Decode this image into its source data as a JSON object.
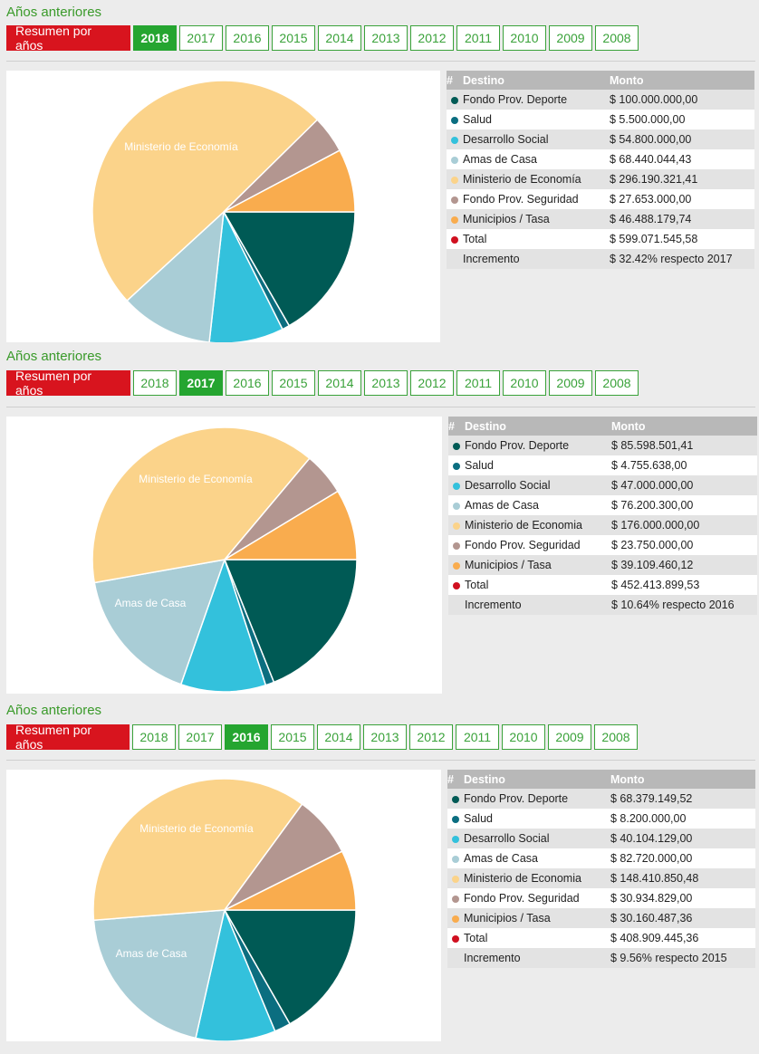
{
  "nav": {
    "section_title": "Años anteriores",
    "summary_label": "Resumen por años",
    "years": [
      "2018",
      "2017",
      "2016",
      "2015",
      "2014",
      "2013",
      "2012",
      "2011",
      "2010",
      "2009",
      "2008"
    ]
  },
  "table_headers": {
    "hash": "#",
    "destino": "Destino",
    "monto": "Monto"
  },
  "sections": [
    {
      "active_year": "2018",
      "rows": [
        {
          "name": "Fondo Prov. Deporte",
          "amount": "$ 100.000.000,00",
          "color": "#005a55"
        },
        {
          "name": "Salud",
          "amount": "$ 5.500.000,00",
          "color": "#0b6e80"
        },
        {
          "name": "Desarrollo Social",
          "amount": "$ 54.800.000,00",
          "color": "#33c1dc"
        },
        {
          "name": "Amas de Casa",
          "amount": "$ 68.440.044,43",
          "color": "#a9cdd6"
        },
        {
          "name": "Ministerio de Economía",
          "amount": "$ 296.190.321,41",
          "color": "#fbd38a"
        },
        {
          "name": "Fondo Prov. Seguridad",
          "amount": "$ 27.653.000,00",
          "color": "#b39690"
        },
        {
          "name": "Municipios / Tasa",
          "amount": "$ 46.488.179,74",
          "color": "#f9ac4e"
        },
        {
          "name": "Total",
          "amount": "$ 599.071.545,58",
          "color": "#d01020"
        },
        {
          "name": "Incremento",
          "amount": "$ 32.42% respecto 2017",
          "color": ""
        }
      ]
    },
    {
      "active_year": "2017",
      "rows": [
        {
          "name": "Fondo Prov. Deporte",
          "amount": "$ 85.598.501,41",
          "color": "#005a55"
        },
        {
          "name": "Salud",
          "amount": "$ 4.755.638,00",
          "color": "#0b6e80"
        },
        {
          "name": "Desarrollo Social",
          "amount": "$ 47.000.000,00",
          "color": "#33c1dc"
        },
        {
          "name": "Amas de Casa",
          "amount": "$ 76.200.300,00",
          "color": "#a9cdd6"
        },
        {
          "name": "Ministerio de Economia",
          "amount": "$ 176.000.000,00",
          "color": "#fbd38a"
        },
        {
          "name": "Fondo Prov. Seguridad",
          "amount": "$ 23.750.000,00",
          "color": "#b39690"
        },
        {
          "name": "Municipios / Tasa",
          "amount": "$ 39.109.460,12",
          "color": "#f9ac4e"
        },
        {
          "name": "Total",
          "amount": "$ 452.413.899,53",
          "color": "#d01020"
        },
        {
          "name": "Incremento",
          "amount": "$ 10.64% respecto 2016",
          "color": ""
        }
      ]
    },
    {
      "active_year": "2016",
      "rows": [
        {
          "name": "Fondo Prov. Deporte",
          "amount": "$ 68.379.149,52",
          "color": "#005a55"
        },
        {
          "name": "Salud",
          "amount": "$ 8.200.000,00",
          "color": "#0b6e80"
        },
        {
          "name": "Desarrollo Social",
          "amount": "$ 40.104.129,00",
          "color": "#33c1dc"
        },
        {
          "name": "Amas de Casa",
          "amount": "$ 82.720.000,00",
          "color": "#a9cdd6"
        },
        {
          "name": "Ministerio de Economia",
          "amount": "$ 148.410.850,48",
          "color": "#fbd38a"
        },
        {
          "name": "Fondo Prov. Seguridad",
          "amount": "$ 30.934.829,00",
          "color": "#b39690"
        },
        {
          "name": "Municipios / Tasa",
          "amount": "$ 30.160.487,36",
          "color": "#f9ac4e"
        },
        {
          "name": "Total",
          "amount": "$ 408.909.445,36",
          "color": "#d01020"
        },
        {
          "name": "Incremento",
          "amount": "$ 9.56% respecto 2015",
          "color": ""
        }
      ]
    }
  ],
  "chart_data": [
    {
      "type": "pie",
      "title": "2018",
      "categories": [
        "Fondo Prov. Deporte",
        "Salud",
        "Desarrollo Social",
        "Amas de Casa",
        "Ministerio de Economía",
        "Fondo Prov. Seguridad",
        "Municipios / Tasa"
      ],
      "values": [
        100000000.0,
        5500000.0,
        54800000.0,
        68440044.43,
        296190321.41,
        27653000.0,
        46488179.74
      ],
      "colors": [
        "#005a55",
        "#0b6e80",
        "#33c1dc",
        "#a9cdd6",
        "#fbd38a",
        "#b39690",
        "#f9ac4e"
      ],
      "slice_labels": [
        "",
        "",
        "",
        "",
        "Ministerio de Economía",
        "",
        ""
      ]
    },
    {
      "type": "pie",
      "title": "2017",
      "categories": [
        "Fondo Prov. Deporte",
        "Salud",
        "Desarrollo Social",
        "Amas de Casa",
        "Ministerio de Economia",
        "Fondo Prov. Seguridad",
        "Municipios / Tasa"
      ],
      "values": [
        85598501.41,
        4755638.0,
        47000000.0,
        76200300.0,
        176000000.0,
        23750000.0,
        39109460.12
      ],
      "colors": [
        "#005a55",
        "#0b6e80",
        "#33c1dc",
        "#a9cdd6",
        "#fbd38a",
        "#b39690",
        "#f9ac4e"
      ],
      "slice_labels": [
        "",
        "",
        "",
        "Amas de Casa",
        "Ministerio de Economía",
        "",
        ""
      ]
    },
    {
      "type": "pie",
      "title": "2016",
      "categories": [
        "Fondo Prov. Deporte",
        "Salud",
        "Desarrollo Social",
        "Amas de Casa",
        "Ministerio de Economia",
        "Fondo Prov. Seguridad",
        "Municipios / Tasa"
      ],
      "values": [
        68379149.52,
        8200000.0,
        40104129.0,
        82720000.0,
        148410850.48,
        30934829.0,
        30160487.36
      ],
      "colors": [
        "#005a55",
        "#0b6e80",
        "#33c1dc",
        "#a9cdd6",
        "#fbd38a",
        "#b39690",
        "#f9ac4e"
      ],
      "slice_labels": [
        "",
        "",
        "",
        "Amas de Casa",
        "Ministerio de Economía",
        "",
        ""
      ]
    }
  ]
}
